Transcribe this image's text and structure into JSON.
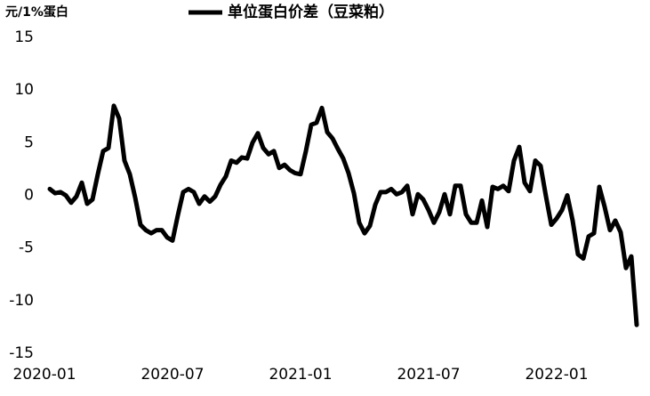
{
  "chart_data": {
    "type": "line",
    "y_label": "元/1%蛋白",
    "x": [
      0.25,
      0.5,
      0.75,
      1,
      1.25,
      1.5,
      1.75,
      2,
      2.25,
      2.5,
      2.75,
      3,
      3.25,
      3.5,
      3.75,
      4,
      4.25,
      4.5,
      4.75,
      5,
      5.25,
      5.5,
      5.75,
      6,
      6.25,
      6.5,
      6.75,
      7,
      7.25,
      7.5,
      7.75,
      8,
      8.25,
      8.5,
      8.75,
      9,
      9.25,
      9.5,
      9.75,
      10,
      10.25,
      10.5,
      10.75,
      11,
      11.25,
      11.5,
      11.75,
      12,
      12.25,
      12.5,
      12.75,
      13,
      13.25,
      13.5,
      13.75,
      14,
      14.25,
      14.5,
      14.75,
      15,
      15.25,
      15.5,
      15.75,
      16,
      16.25,
      16.5,
      16.75,
      17,
      17.25,
      17.5,
      17.75,
      18,
      18.25,
      18.5,
      18.75,
      19,
      19.25,
      19.5,
      19.75,
      20,
      20.25,
      20.5,
      20.75,
      21,
      21.25,
      21.5,
      21.75,
      22,
      22.25,
      22.5,
      22.75,
      23,
      23.25,
      23.5,
      23.75,
      24,
      24.25,
      24.5,
      24.75,
      25,
      25.25,
      25.5,
      25.75,
      26,
      26.25,
      26.5,
      26.75,
      27,
      27.25,
      27.5,
      27.75
    ],
    "series": [
      {
        "name": "单位蛋白价差（豆菜粕）",
        "color": "#000000",
        "values": [
          0.6,
          0.2,
          0.3,
          0.0,
          -0.7,
          -0.1,
          1.2,
          -0.8,
          -0.4,
          2.0,
          4.2,
          4.5,
          8.5,
          7.3,
          3.3,
          2.0,
          -0.2,
          -2.8,
          -3.3,
          -3.6,
          -3.3,
          -3.3,
          -4.0,
          -4.3,
          -1.9,
          0.3,
          0.6,
          0.3,
          -0.8,
          -0.1,
          -0.6,
          -0.1,
          1.0,
          1.8,
          3.3,
          3.1,
          3.6,
          3.5,
          5.0,
          5.9,
          4.5,
          3.9,
          4.2,
          2.6,
          2.9,
          2.4,
          2.1,
          2.0,
          4.2,
          6.7,
          6.9,
          8.3,
          6.0,
          5.4,
          4.4,
          3.5,
          2.1,
          0.2,
          -2.6,
          -3.6,
          -2.9,
          -0.9,
          0.3,
          0.3,
          0.6,
          0.1,
          0.3,
          0.9,
          -1.8,
          0.1,
          -0.4,
          -1.4,
          -2.6,
          -1.6,
          0.1,
          -1.8,
          0.9,
          0.9,
          -1.8,
          -2.6,
          -2.6,
          -0.5,
          -3.0,
          0.8,
          0.6,
          0.9,
          0.4,
          3.3,
          4.6,
          1.2,
          0.4,
          3.3,
          2.8,
          -0.1,
          -2.8,
          -2.2,
          -1.4,
          0.0,
          -2.4,
          -5.6,
          -6.0,
          -3.9,
          -3.6,
          0.8,
          -1.1,
          -3.3,
          -2.4,
          -3.5,
          -6.9,
          -5.8,
          -12.3
        ]
      }
    ],
    "xlim": [
      0,
      28
    ],
    "xticks": [
      {
        "value": 0,
        "label": "2020-01"
      },
      {
        "value": 6,
        "label": "2020-07"
      },
      {
        "value": 12,
        "label": "2021-01"
      },
      {
        "value": 18,
        "label": "2021-07"
      },
      {
        "value": 24,
        "label": "2022-01"
      }
    ],
    "ylim": [
      -15,
      15
    ],
    "yticks": [
      15,
      10,
      5,
      0,
      -5,
      -10,
      -15
    ],
    "grid": false
  }
}
